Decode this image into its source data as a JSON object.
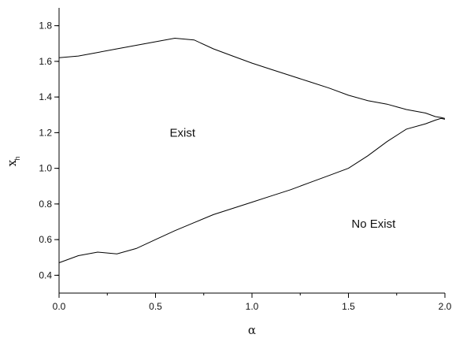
{
  "chart_data": {
    "type": "line",
    "title": "",
    "xlabel": "α",
    "ylabel": "x",
    "ylabel_subscript": "h",
    "xlim": [
      0.0,
      2.0
    ],
    "ylim": [
      0.3,
      1.9
    ],
    "x_ticks": [
      "0.0",
      "0.5",
      "1.0",
      "1.5",
      "2.0"
    ],
    "x_tick_values": [
      0.0,
      0.5,
      1.0,
      1.5,
      2.0
    ],
    "y_ticks": [
      "0.4",
      "0.6",
      "0.8",
      "1.0",
      "1.2",
      "1.4",
      "1.6",
      "1.8"
    ],
    "y_tick_values": [
      0.4,
      0.6,
      0.8,
      1.0,
      1.2,
      1.4,
      1.6,
      1.8
    ],
    "grid": false,
    "series": [
      {
        "x": [
          0.0,
          0.1,
          0.2,
          0.3,
          0.4,
          0.5,
          0.6,
          0.7,
          0.8,
          0.9,
          1.0,
          1.1,
          1.2,
          1.3,
          1.4,
          1.5,
          1.6,
          1.7,
          1.8,
          1.9,
          1.95,
          1.98,
          2.0
        ],
        "values": [
          1.62,
          1.63,
          1.65,
          1.67,
          1.69,
          1.71,
          1.73,
          1.72,
          1.67,
          1.63,
          1.59,
          1.555,
          1.52,
          1.485,
          1.45,
          1.41,
          1.38,
          1.36,
          1.33,
          1.31,
          1.29,
          1.285,
          1.28
        ]
      },
      {
        "x": [
          0.0,
          0.1,
          0.2,
          0.3,
          0.4,
          0.5,
          0.6,
          0.7,
          0.8,
          0.9,
          1.0,
          1.1,
          1.2,
          1.3,
          1.4,
          1.5,
          1.6,
          1.7,
          1.8,
          1.9,
          1.95,
          1.98,
          2.0
        ],
        "values": [
          0.47,
          0.51,
          0.53,
          0.52,
          0.55,
          0.6,
          0.65,
          0.695,
          0.74,
          0.775,
          0.81,
          0.845,
          0.88,
          0.92,
          0.96,
          1.0,
          1.07,
          1.15,
          1.22,
          1.25,
          1.27,
          1.28,
          1.275
        ]
      }
    ],
    "annotations": [
      {
        "text": "Exist",
        "x": 0.64,
        "y": 1.2
      },
      {
        "text": "No Exist",
        "x": 1.63,
        "y": 0.69
      }
    ]
  }
}
